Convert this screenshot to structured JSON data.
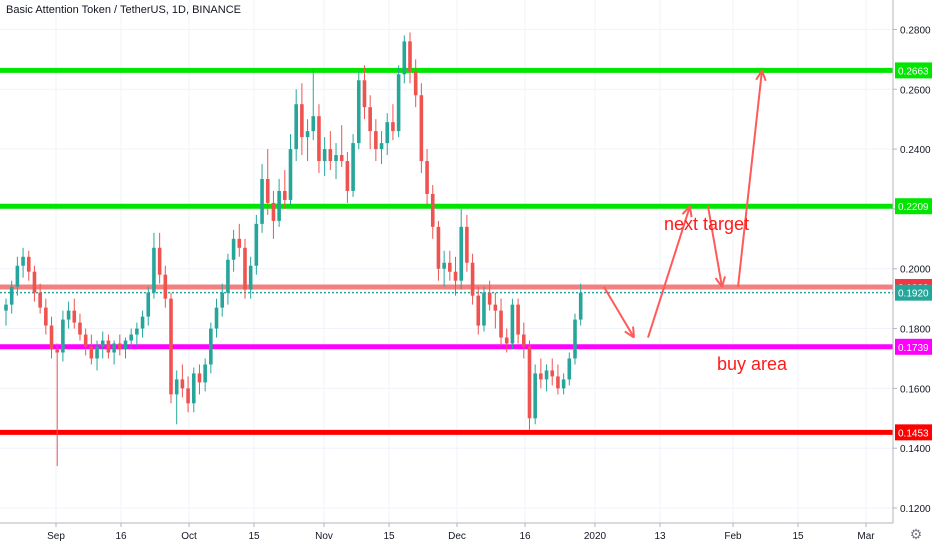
{
  "header": {
    "title": "Basic Attention Token / TetherUS, 1D, BINANCE"
  },
  "chart_data": {
    "type": "candlestick",
    "symbol": "BATUSDT",
    "y_axis": {
      "range": [
        0.116,
        0.2885
      ],
      "ticks": [
        "0.2800",
        "0.2600",
        "0.2400",
        "0.2200",
        "0.2000",
        "0.1800",
        "0.1600",
        "0.1400",
        "0.1200"
      ]
    },
    "x_axis": {
      "ticks": [
        "Sep",
        "16",
        "Oct",
        "15",
        "Nov",
        "15",
        "Dec",
        "16",
        "2020",
        "13",
        "Feb",
        "15",
        "Mar"
      ]
    },
    "price_labels": [
      {
        "value": "0.2663",
        "color": "#00e600"
      },
      {
        "value": "0.2209",
        "color": "#00e600"
      },
      {
        "value": "0.1939",
        "color": "#f23645"
      },
      {
        "value": "0.1920",
        "color": "#26a69a"
      },
      {
        "value": "0.1739",
        "color": "#ff00ff"
      },
      {
        "value": "0.1453",
        "color": "#ff0000"
      }
    ],
    "horizontal_lines": [
      {
        "price": 0.2663,
        "color": "#00e600",
        "name": "resistance-top"
      },
      {
        "price": 0.2209,
        "color": "#00e600",
        "name": "resistance-mid"
      },
      {
        "price": 0.1939,
        "color": "#f28080",
        "name": "zone-upper"
      },
      {
        "price": 0.1739,
        "color": "#ff00ff",
        "name": "buy-area-line"
      },
      {
        "price": 0.1453,
        "color": "#ff0000",
        "name": "support-bottom"
      }
    ],
    "current_price": 0.192,
    "annotations": [
      {
        "text": "next target",
        "color": "#ff1a1a"
      },
      {
        "text": "buy area",
        "color": "#ff1a1a"
      }
    ],
    "projection_path": [
      [
        0.1939,
        0.177,
        0.2209,
        0.1939,
        0.2663
      ]
    ],
    "ohlc": [
      [
        0.186,
        0.19,
        0.181,
        0.188
      ],
      [
        0.188,
        0.196,
        0.185,
        0.194
      ],
      [
        0.194,
        0.204,
        0.191,
        0.201
      ],
      [
        0.201,
        0.207,
        0.197,
        0.204
      ],
      [
        0.204,
        0.206,
        0.196,
        0.199
      ],
      [
        0.199,
        0.201,
        0.189,
        0.192
      ],
      [
        0.192,
        0.195,
        0.185,
        0.187
      ],
      [
        0.187,
        0.19,
        0.178,
        0.181
      ],
      [
        0.181,
        0.184,
        0.17,
        0.173
      ],
      [
        0.173,
        0.175,
        0.134,
        0.172
      ],
      [
        0.172,
        0.186,
        0.169,
        0.183
      ],
      [
        0.183,
        0.189,
        0.18,
        0.186
      ],
      [
        0.186,
        0.19,
        0.18,
        0.182
      ],
      [
        0.182,
        0.185,
        0.176,
        0.178
      ],
      [
        0.178,
        0.18,
        0.171,
        0.174
      ],
      [
        0.174,
        0.178,
        0.168,
        0.17
      ],
      [
        0.17,
        0.176,
        0.166,
        0.174
      ],
      [
        0.174,
        0.179,
        0.17,
        0.176
      ],
      [
        0.176,
        0.178,
        0.17,
        0.172
      ],
      [
        0.172,
        0.176,
        0.168,
        0.175
      ],
      [
        0.175,
        0.178,
        0.171,
        0.173
      ],
      [
        0.173,
        0.177,
        0.17,
        0.176
      ],
      [
        0.176,
        0.18,
        0.173,
        0.178
      ],
      [
        0.178,
        0.182,
        0.174,
        0.18
      ],
      [
        0.18,
        0.186,
        0.177,
        0.184
      ],
      [
        0.184,
        0.194,
        0.181,
        0.192
      ],
      [
        0.192,
        0.212,
        0.19,
        0.207
      ],
      [
        0.207,
        0.212,
        0.195,
        0.198
      ],
      [
        0.198,
        0.201,
        0.187,
        0.19
      ],
      [
        0.19,
        0.192,
        0.155,
        0.158
      ],
      [
        0.158,
        0.166,
        0.148,
        0.163
      ],
      [
        0.163,
        0.168,
        0.157,
        0.16
      ],
      [
        0.16,
        0.164,
        0.152,
        0.155
      ],
      [
        0.155,
        0.167,
        0.152,
        0.165
      ],
      [
        0.165,
        0.168,
        0.158,
        0.162
      ],
      [
        0.162,
        0.17,
        0.159,
        0.168
      ],
      [
        0.168,
        0.182,
        0.165,
        0.18
      ],
      [
        0.18,
        0.19,
        0.177,
        0.187
      ],
      [
        0.187,
        0.195,
        0.184,
        0.192
      ],
      [
        0.192,
        0.205,
        0.188,
        0.203
      ],
      [
        0.203,
        0.213,
        0.199,
        0.21
      ],
      [
        0.21,
        0.215,
        0.204,
        0.207
      ],
      [
        0.207,
        0.21,
        0.19,
        0.193
      ],
      [
        0.193,
        0.204,
        0.19,
        0.201
      ],
      [
        0.201,
        0.218,
        0.198,
        0.215
      ],
      [
        0.215,
        0.235,
        0.212,
        0.23
      ],
      [
        0.23,
        0.24,
        0.218,
        0.222
      ],
      [
        0.222,
        0.226,
        0.21,
        0.216
      ],
      [
        0.216,
        0.23,
        0.214,
        0.226
      ],
      [
        0.226,
        0.233,
        0.22,
        0.223
      ],
      [
        0.223,
        0.245,
        0.221,
        0.24
      ],
      [
        0.24,
        0.26,
        0.236,
        0.255
      ],
      [
        0.255,
        0.262,
        0.238,
        0.244
      ],
      [
        0.244,
        0.25,
        0.236,
        0.246
      ],
      [
        0.246,
        0.267,
        0.243,
        0.251
      ],
      [
        0.251,
        0.255,
        0.232,
        0.236
      ],
      [
        0.236,
        0.244,
        0.231,
        0.24
      ],
      [
        0.24,
        0.246,
        0.233,
        0.236
      ],
      [
        0.236,
        0.242,
        0.23,
        0.238
      ],
      [
        0.238,
        0.248,
        0.234,
        0.236
      ],
      [
        0.236,
        0.239,
        0.222,
        0.226
      ],
      [
        0.226,
        0.245,
        0.224,
        0.242
      ],
      [
        0.242,
        0.266,
        0.24,
        0.263
      ],
      [
        0.263,
        0.268,
        0.25,
        0.254
      ],
      [
        0.254,
        0.258,
        0.24,
        0.246
      ],
      [
        0.246,
        0.25,
        0.236,
        0.24
      ],
      [
        0.24,
        0.246,
        0.235,
        0.242
      ],
      [
        0.242,
        0.252,
        0.238,
        0.249
      ],
      [
        0.249,
        0.255,
        0.243,
        0.246
      ],
      [
        0.246,
        0.268,
        0.244,
        0.265
      ],
      [
        0.265,
        0.278,
        0.262,
        0.276
      ],
      [
        0.276,
        0.279,
        0.262,
        0.266
      ],
      [
        0.266,
        0.27,
        0.254,
        0.258
      ],
      [
        0.258,
        0.262,
        0.232,
        0.236
      ],
      [
        0.236,
        0.24,
        0.221,
        0.225
      ],
      [
        0.225,
        0.228,
        0.21,
        0.214
      ],
      [
        0.214,
        0.216,
        0.196,
        0.2
      ],
      [
        0.2,
        0.206,
        0.194,
        0.202
      ],
      [
        0.202,
        0.206,
        0.196,
        0.199
      ],
      [
        0.199,
        0.204,
        0.191,
        0.196
      ],
      [
        0.196,
        0.22,
        0.193,
        0.214
      ],
      [
        0.214,
        0.218,
        0.199,
        0.202
      ],
      [
        0.202,
        0.205,
        0.188,
        0.191
      ],
      [
        0.191,
        0.194,
        0.178,
        0.181
      ],
      [
        0.181,
        0.194,
        0.179,
        0.192
      ],
      [
        0.192,
        0.196,
        0.186,
        0.188
      ],
      [
        0.188,
        0.192,
        0.18,
        0.186
      ],
      [
        0.186,
        0.19,
        0.174,
        0.177
      ],
      [
        0.177,
        0.18,
        0.172,
        0.175
      ],
      [
        0.175,
        0.19,
        0.173,
        0.188
      ],
      [
        0.188,
        0.19,
        0.175,
        0.178
      ],
      [
        0.178,
        0.182,
        0.17,
        0.174
      ],
      [
        0.174,
        0.176,
        0.146,
        0.15
      ],
      [
        0.15,
        0.168,
        0.148,
        0.165
      ],
      [
        0.165,
        0.17,
        0.16,
        0.163
      ],
      [
        0.163,
        0.168,
        0.159,
        0.166
      ],
      [
        0.166,
        0.17,
        0.161,
        0.164
      ],
      [
        0.164,
        0.168,
        0.158,
        0.16
      ],
      [
        0.16,
        0.165,
        0.158,
        0.163
      ],
      [
        0.163,
        0.172,
        0.161,
        0.17
      ],
      [
        0.17,
        0.185,
        0.168,
        0.183
      ],
      [
        0.183,
        0.195,
        0.181,
        0.192
      ]
    ]
  }
}
